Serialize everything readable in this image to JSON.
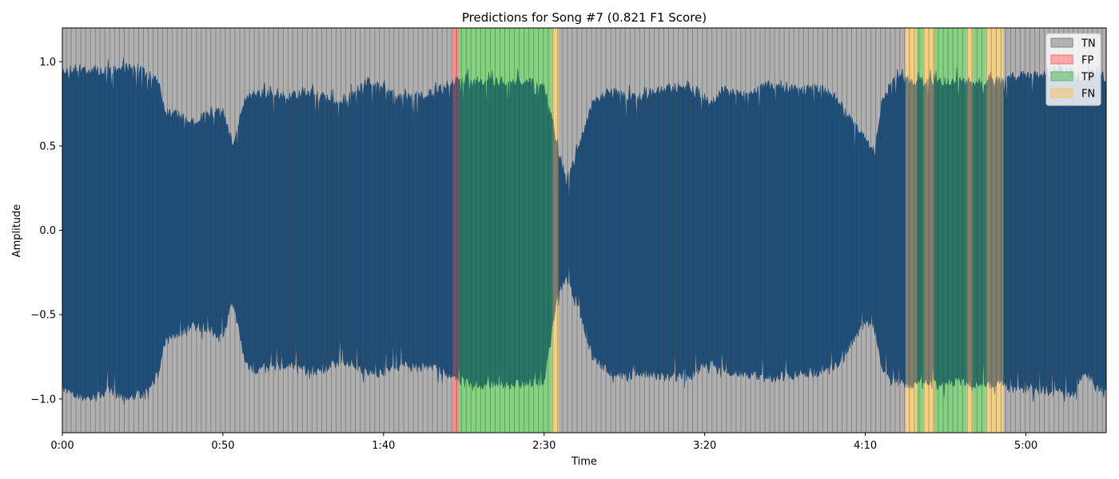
{
  "chart_data": {
    "type": "area",
    "title": "Predictions for Song #7 (0.821 F1 Score)",
    "xlabel": "Time",
    "ylabel": "Amplitude",
    "xlim": [
      0,
      325
    ],
    "ylim": [
      -1.2,
      1.2
    ],
    "x_ticks": [
      {
        "value": 0,
        "label": "0:00"
      },
      {
        "value": 50,
        "label": "0:50"
      },
      {
        "value": 100,
        "label": "1:40"
      },
      {
        "value": 150,
        "label": "2:30"
      },
      {
        "value": 200,
        "label": "3:20"
      },
      {
        "value": 250,
        "label": "4:10"
      },
      {
        "value": 300,
        "label": "5:00"
      }
    ],
    "y_ticks": [
      {
        "value": 1.0,
        "label": "1.0"
      },
      {
        "value": 0.5,
        "label": "0.5"
      },
      {
        "value": 0.0,
        "label": "0.0"
      },
      {
        "value": -0.5,
        "label": "−0.5"
      },
      {
        "value": -1.0,
        "label": "−1.0"
      }
    ],
    "waveform_color": "#1f4e79",
    "envelope": {
      "time": [
        0,
        5,
        10,
        15,
        20,
        25,
        30,
        32,
        35,
        40,
        45,
        50,
        53,
        57,
        60,
        65,
        70,
        75,
        80,
        85,
        90,
        95,
        100,
        105,
        110,
        115,
        118,
        120,
        122,
        125,
        128,
        130,
        135,
        140,
        145,
        150,
        152,
        154,
        157,
        160,
        165,
        170,
        175,
        180,
        185,
        190,
        195,
        199,
        202,
        205,
        210,
        215,
        220,
        225,
        230,
        235,
        240,
        245,
        250,
        253,
        255,
        258,
        260,
        262,
        265,
        270,
        275,
        280,
        285,
        290,
        292,
        295,
        300,
        305,
        310,
        315,
        318,
        320,
        322,
        325
      ],
      "upper": [
        0.97,
        1.0,
        0.98,
        0.98,
        1.0,
        0.98,
        0.92,
        0.72,
        0.73,
        0.68,
        0.72,
        0.74,
        0.55,
        0.82,
        0.84,
        0.85,
        0.82,
        0.86,
        0.83,
        0.8,
        0.83,
        0.92,
        0.9,
        0.82,
        0.82,
        0.85,
        0.88,
        0.9,
        0.92,
        0.92,
        0.92,
        0.92,
        0.92,
        0.92,
        0.92,
        0.88,
        0.75,
        0.53,
        0.33,
        0.48,
        0.78,
        0.86,
        0.84,
        0.82,
        0.86,
        0.88,
        0.89,
        0.84,
        0.78,
        0.87,
        0.86,
        0.86,
        0.9,
        0.88,
        0.86,
        0.88,
        0.84,
        0.7,
        0.57,
        0.5,
        0.78,
        0.92,
        0.93,
        0.93,
        0.92,
        0.92,
        0.92,
        0.92,
        0.91,
        0.92,
        0.92,
        0.94,
        0.96,
        0.96,
        0.98,
        0.97,
        0.92,
        0.96,
        0.98,
        0.93
      ],
      "lower": [
        -0.98,
        -1.02,
        -1.03,
        -0.98,
        -1.04,
        -1.0,
        -0.88,
        -0.7,
        -0.67,
        -0.6,
        -0.62,
        -0.68,
        -0.45,
        -0.82,
        -0.86,
        -0.85,
        -0.84,
        -0.85,
        -0.88,
        -0.83,
        -0.82,
        -0.88,
        -0.88,
        -0.84,
        -0.85,
        -0.84,
        -0.87,
        -0.9,
        -0.92,
        -0.94,
        -0.95,
        -0.95,
        -0.95,
        -0.95,
        -0.94,
        -0.94,
        -0.7,
        -0.42,
        -0.33,
        -0.45,
        -0.78,
        -0.87,
        -0.9,
        -0.88,
        -0.9,
        -0.91,
        -0.9,
        -0.85,
        -0.82,
        -0.88,
        -0.88,
        -0.89,
        -0.92,
        -0.9,
        -0.88,
        -0.88,
        -0.86,
        -0.72,
        -0.58,
        -0.6,
        -0.84,
        -0.93,
        -0.93,
        -0.95,
        -0.95,
        -0.95,
        -0.95,
        -0.93,
        -0.95,
        -0.95,
        -0.93,
        -0.97,
        -0.98,
        -0.98,
        -1.0,
        -1.0,
        -0.88,
        -0.9,
        -0.98,
        -0.96
      ]
    },
    "segments": [
      {
        "class": "TN",
        "start": 0,
        "end": 121.5
      },
      {
        "class": "FP",
        "start": 121.5,
        "end": 123.5
      },
      {
        "class": "TP",
        "start": 123.5,
        "end": 152.5
      },
      {
        "class": "FN",
        "start": 152.5,
        "end": 154.5
      },
      {
        "class": "TN",
        "start": 154.5,
        "end": 262.5
      },
      {
        "class": "FN",
        "start": 262.5,
        "end": 266
      },
      {
        "class": "TP",
        "start": 266,
        "end": 268
      },
      {
        "class": "FN",
        "start": 268,
        "end": 271.5
      },
      {
        "class": "TP",
        "start": 271.5,
        "end": 281.5
      },
      {
        "class": "FN",
        "start": 281.5,
        "end": 283.5
      },
      {
        "class": "TP",
        "start": 283.5,
        "end": 287.5
      },
      {
        "class": "FN",
        "start": 287.5,
        "end": 293
      },
      {
        "class": "TN",
        "start": 293,
        "end": 325
      }
    ],
    "legend": {
      "placement": "top-right",
      "entries": [
        {
          "label": "TN",
          "color": "#808080"
        },
        {
          "label": "FP",
          "color": "#ff6f6f"
        },
        {
          "label": "TP",
          "color": "#5cb85c"
        },
        {
          "label": "FN",
          "color": "#f5c56b"
        }
      ]
    }
  }
}
